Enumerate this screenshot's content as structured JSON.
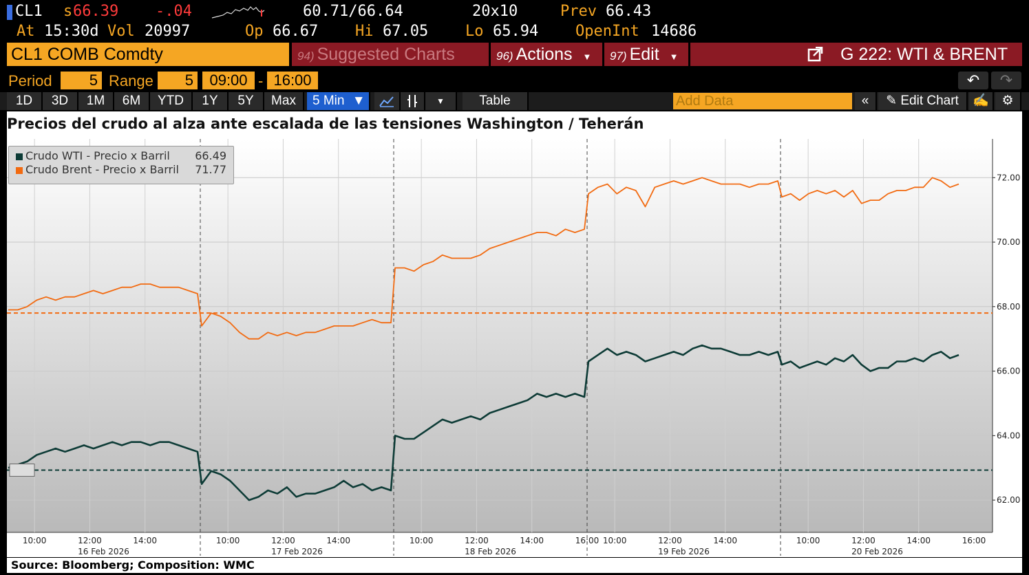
{
  "header": {
    "ticker": "CL1",
    "last_prefix": "s",
    "last": "66.39",
    "change": "-.04",
    "bid_ask": "60.71/66.64",
    "size": "20x10",
    "prev_label": "Prev",
    "prev": "66.43",
    "at_label": "At",
    "at_time": "15:30d",
    "vol_label": "Vol",
    "vol": "20997",
    "op_label": "Op",
    "op": "66.67",
    "hi_label": "Hi",
    "hi": "67.05",
    "lo_label": "Lo",
    "lo": "65.94",
    "oi_label": "OpenInt",
    "oi": "14686"
  },
  "bar": {
    "security": "CL1 COMB Comdty",
    "suggested_num": "94)",
    "suggested": "Suggested Charts",
    "actions_num": "96)",
    "actions": "Actions",
    "edit_num": "97)",
    "edit": "Edit",
    "chart_name": "G 222: WTI & BRENT"
  },
  "period": {
    "period_label": "Period",
    "period_value": "5",
    "range_label": "Range",
    "range_value": "5",
    "start": "09:00",
    "sep": "-",
    "end": "16:00"
  },
  "toolbar": {
    "ranges": [
      "1D",
      "3D",
      "1M",
      "6M",
      "YTD",
      "1Y",
      "5Y",
      "Max"
    ],
    "interval": "5 Min",
    "table": "Table",
    "add_data": "Add Data",
    "edit_chart": "Edit Chart"
  },
  "footer": "Source: Bloomberg; Composition: WMC",
  "colors": {
    "wti": "#0d3b36",
    "brent": "#f26a10",
    "amber": "#f5a623",
    "red_bar": "#8b1a24"
  },
  "chart_data": {
    "type": "line",
    "title": "Precios del crudo al alza ante escalada de las tensiones Washington / Teherán",
    "ylim": [
      61.0,
      73.2
    ],
    "yticks": [
      62.0,
      64.0,
      66.0,
      68.0,
      70.0,
      72.0
    ],
    "ytick_labels": [
      "62.00",
      "64.00",
      "66.00",
      "68.00",
      "70.00",
      "72.00"
    ],
    "xtick_labels": [
      "10:00",
      "12:00",
      "14:00",
      "10:00",
      "12:00",
      "14:00",
      "10:00",
      "12:00",
      "14:00",
      "16:00",
      "10:00",
      "12:00",
      "14:00",
      "10:00",
      "12:00",
      "14:00",
      "16:00"
    ],
    "day_labels": [
      "16 Feb 2026",
      "17 Feb 2026",
      "18 Feb 2026",
      "19 Feb 2026",
      "20 Feb 2026"
    ],
    "legend_position": "top-left",
    "grid": true,
    "series": [
      {
        "name": "Crudo WTI - Precio x Barril",
        "last_label": "66.49",
        "reference": 62.93,
        "days": [
          [
            63.0,
            63.1,
            63.2,
            63.4,
            63.5,
            63.6,
            63.5,
            63.6,
            63.7,
            63.6,
            63.7,
            63.8,
            63.7,
            63.8,
            63.8,
            63.7,
            63.8,
            63.8,
            63.7,
            63.6,
            63.5
          ],
          [
            62.5,
            62.9,
            62.8,
            62.6,
            62.3,
            62.0,
            62.1,
            62.3,
            62.2,
            62.4,
            62.1,
            62.2,
            62.2,
            62.3,
            62.4,
            62.6,
            62.4,
            62.5,
            62.3,
            62.4,
            62.3
          ],
          [
            64.0,
            63.9,
            63.9,
            64.1,
            64.3,
            64.5,
            64.4,
            64.5,
            64.6,
            64.5,
            64.7,
            64.8,
            64.9,
            65.0,
            65.1,
            65.3,
            65.2,
            65.3,
            65.2,
            65.3,
            65.2
          ],
          [
            66.3,
            66.5,
            66.7,
            66.5,
            66.6,
            66.5,
            66.3,
            66.4,
            66.5,
            66.6,
            66.5,
            66.7,
            66.8,
            66.7,
            66.7,
            66.6,
            66.5,
            66.5,
            66.6,
            66.5,
            66.6
          ],
          [
            66.2,
            66.3,
            66.1,
            66.2,
            66.3,
            66.2,
            66.4,
            66.3,
            66.5,
            66.2,
            66.0,
            66.1,
            66.1,
            66.3,
            66.3,
            66.4,
            66.3,
            66.5,
            66.6,
            66.4,
            66.5
          ]
        ]
      },
      {
        "name": "Crudo Brent - Precio x Barril",
        "last_label": "71.77",
        "reference": 67.8,
        "days": [
          [
            67.9,
            67.9,
            68.0,
            68.2,
            68.3,
            68.2,
            68.3,
            68.3,
            68.4,
            68.5,
            68.4,
            68.5,
            68.6,
            68.6,
            68.7,
            68.7,
            68.6,
            68.6,
            68.6,
            68.5,
            68.4
          ],
          [
            67.4,
            67.8,
            67.7,
            67.5,
            67.2,
            67.0,
            67.0,
            67.2,
            67.1,
            67.2,
            67.1,
            67.2,
            67.2,
            67.3,
            67.4,
            67.4,
            67.4,
            67.5,
            67.6,
            67.5,
            67.5
          ],
          [
            69.2,
            69.2,
            69.1,
            69.3,
            69.4,
            69.6,
            69.5,
            69.5,
            69.5,
            69.6,
            69.8,
            69.9,
            70.0,
            70.1,
            70.2,
            70.3,
            70.3,
            70.2,
            70.4,
            70.3,
            70.4
          ],
          [
            71.5,
            71.7,
            71.8,
            71.5,
            71.7,
            71.6,
            71.1,
            71.7,
            71.8,
            71.9,
            71.8,
            71.9,
            72.0,
            71.9,
            71.8,
            71.8,
            71.8,
            71.7,
            71.8,
            71.8,
            71.9
          ],
          [
            71.4,
            71.5,
            71.3,
            71.5,
            71.6,
            71.5,
            71.6,
            71.4,
            71.6,
            71.2,
            71.3,
            71.3,
            71.5,
            71.6,
            71.6,
            71.7,
            71.7,
            72.0,
            71.9,
            71.7,
            71.8
          ]
        ]
      }
    ]
  }
}
